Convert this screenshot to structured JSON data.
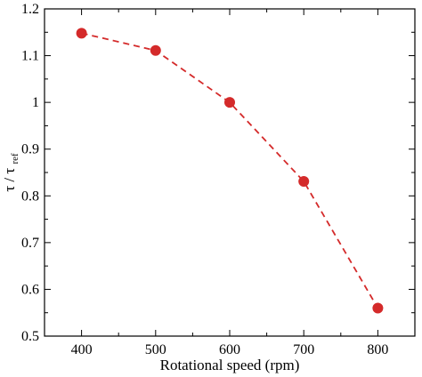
{
  "chart_data": {
    "type": "line",
    "x": [
      400,
      500,
      600,
      700,
      800
    ],
    "y": [
      1.148,
      1.111,
      1.0,
      0.831,
      0.56
    ],
    "xlabel": "Rotational speed (rpm)",
    "ylabel": {
      "symbol": "τ / τ",
      "subscript": "ref"
    },
    "xlim": [
      350,
      850
    ],
    "ylim": [
      0.5,
      1.2
    ],
    "xticks": [
      400,
      500,
      600,
      700,
      800
    ],
    "yticks": [
      0.5,
      0.6,
      0.7,
      0.8,
      0.9,
      1.0,
      1.1,
      1.2
    ],
    "ytick_labels": [
      "0.5",
      "0.6",
      "0.7",
      "0.8",
      "0.9",
      "1",
      "1.1",
      "1.2"
    ],
    "xtick_labels": [
      "400",
      "500",
      "600",
      "700",
      "800"
    ],
    "grid": false,
    "line_style": "dashed",
    "color": "#d42a2a"
  }
}
